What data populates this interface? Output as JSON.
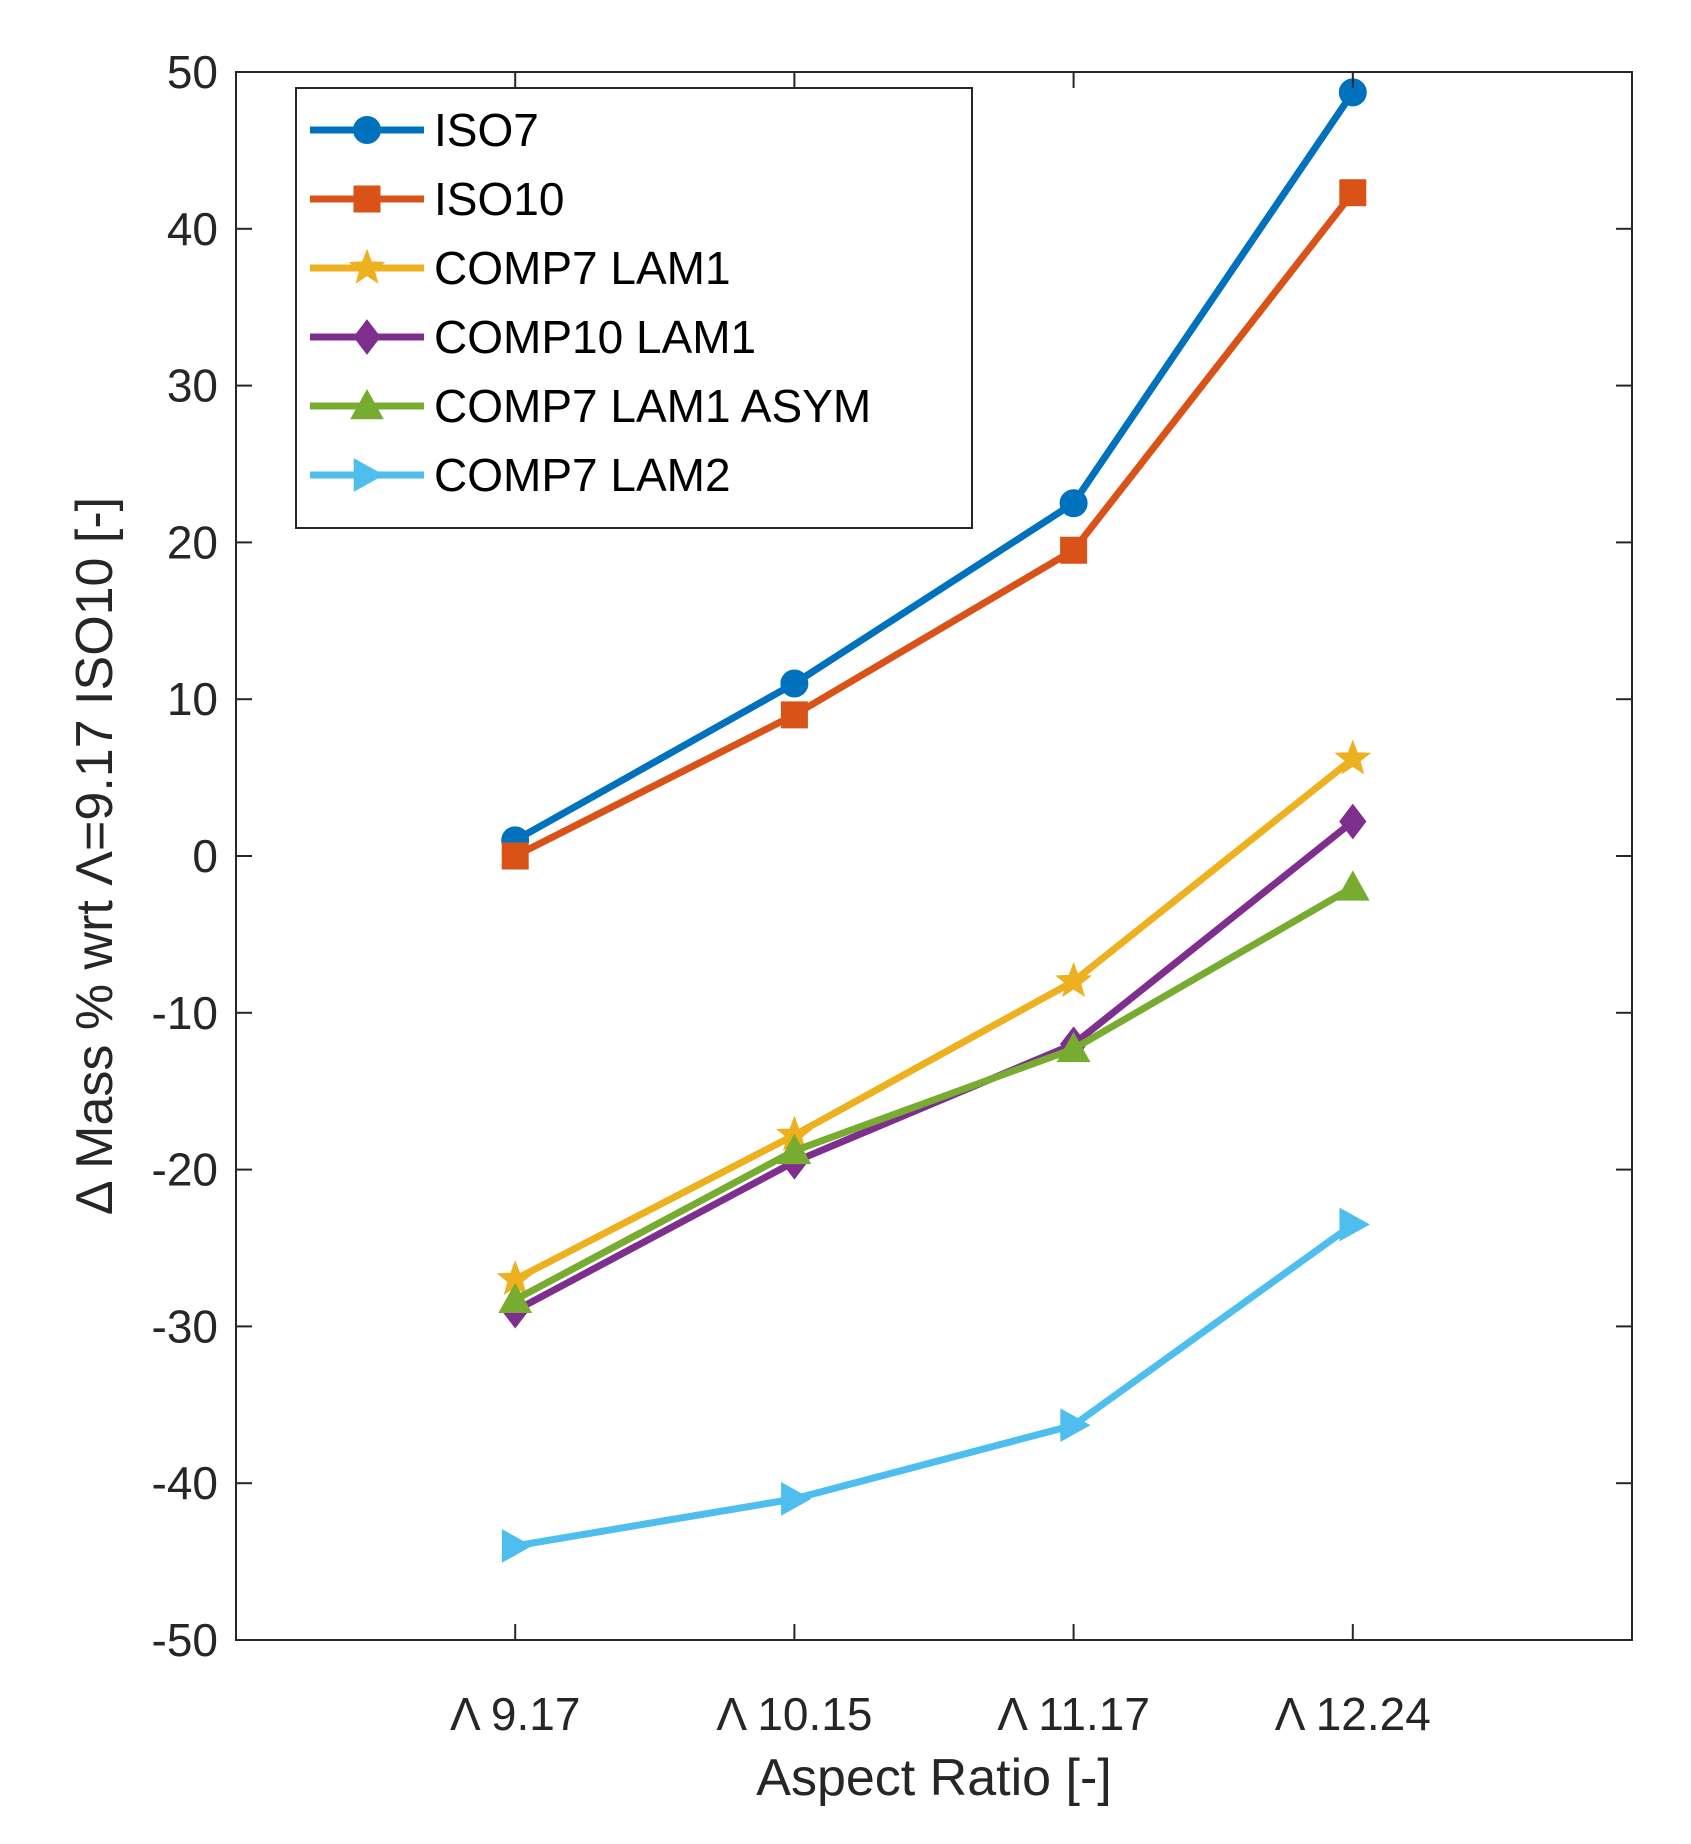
{
  "chart_data": {
    "type": "line",
    "title": "",
    "xlabel": "Aspect Ratio [-]",
    "ylabel": "Δ Mass % wrt Λ=9.17 ISO10 [-]",
    "categories": [
      "Λ 9.17",
      "Λ 10.15",
      "Λ 11.17",
      "Λ 12.24"
    ],
    "xlim": [
      0,
      5
    ],
    "ylim": [
      -50,
      50
    ],
    "yticks": [
      -50,
      -40,
      -30,
      -20,
      -10,
      0,
      10,
      20,
      30,
      40,
      50
    ],
    "ytick_labels": [
      "-50",
      "-40",
      "-30",
      "-20",
      "-10",
      "0",
      "10",
      "20",
      "30",
      "40",
      "50"
    ],
    "grid": false,
    "legend_position": "top-left",
    "series": [
      {
        "name": "ISO7",
        "color": "#0072BD",
        "marker": "circle",
        "values": [
          1.0,
          11.0,
          22.5,
          48.7
        ]
      },
      {
        "name": "ISO10",
        "color": "#D95319",
        "marker": "square",
        "values": [
          0.0,
          9.0,
          19.5,
          42.3
        ]
      },
      {
        "name": "COMP7 LAM1",
        "color": "#EDB120",
        "marker": "star",
        "values": [
          -27.0,
          -17.8,
          -8.0,
          6.2
        ]
      },
      {
        "name": "COMP10 LAM1",
        "color": "#7E2F8E",
        "marker": "diamond",
        "values": [
          -29.0,
          -19.5,
          -12.0,
          2.2
        ]
      },
      {
        "name": "COMP7 LAM1 ASYM",
        "color": "#77AC30",
        "marker": "triangle-up",
        "values": [
          -28.3,
          -18.8,
          -12.3,
          -2.0
        ]
      },
      {
        "name": "COMP7 LAM2",
        "color": "#4DBEEE",
        "marker": "triangle-right",
        "values": [
          -44.0,
          -41.0,
          -36.3,
          -23.5
        ]
      }
    ]
  }
}
